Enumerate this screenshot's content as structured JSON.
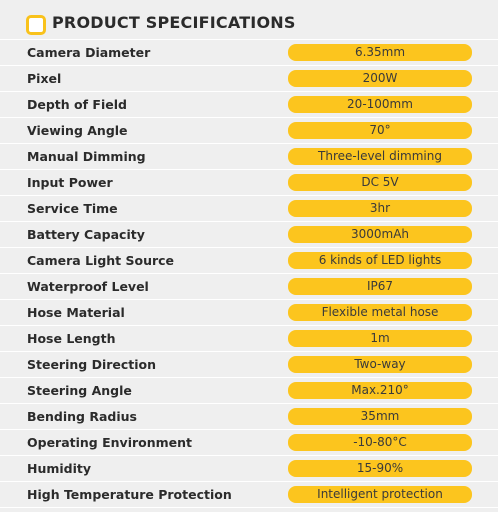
{
  "header": {
    "title": "PRODUCT SPECIFICATIONS"
  },
  "table": {
    "rows": [
      [
        "Camera Diameter",
        "6.35mm"
      ],
      [
        "Pixel",
        "200W"
      ],
      [
        "Depth of Field",
        "20-100mm"
      ],
      [
        "Viewing Angle",
        "70°"
      ],
      [
        "Manual Dimming",
        "Three-level dimming"
      ],
      [
        "Input Power",
        "DC 5V"
      ],
      [
        "Service Time",
        "3hr"
      ],
      [
        "Battery Capacity",
        "3000mAh"
      ],
      [
        "Camera Light Source",
        "6 kinds of LED lights"
      ],
      [
        "Waterproof Level",
        "IP67"
      ],
      [
        "Hose Material",
        "Flexible metal hose"
      ],
      [
        "Hose Length",
        "1m"
      ],
      [
        "Steering Direction",
        "Two-way"
      ],
      [
        "Steering Angle",
        "Max.210°"
      ],
      [
        "Bending Radius",
        "35mm"
      ],
      [
        "Operating Environment",
        "-10-80°C"
      ],
      [
        "Humidity",
        "15-90%"
      ],
      [
        "High Temperature Protection",
        "Intelligent protection"
      ]
    ]
  }
}
